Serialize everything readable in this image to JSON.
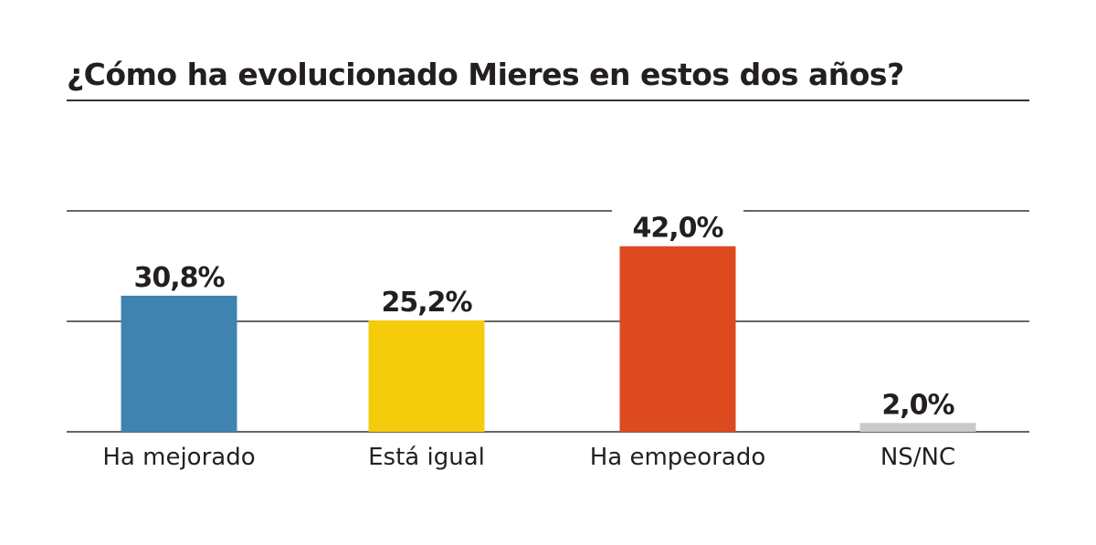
{
  "chart_data": {
    "type": "bar",
    "title": "¿Cómo ha evolucionado Mieres en estos dos años?",
    "categories": [
      "Ha mejorado",
      "Está igual",
      "Ha empeorado",
      "NS/NC"
    ],
    "values": [
      30.8,
      25.2,
      42.0,
      2.0
    ],
    "data_labels": [
      "30,8%",
      "25,2%",
      "42,0%",
      "2,0%"
    ],
    "colors": [
      "#3f84b0",
      "#f4cc0b",
      "#de4a1f",
      "#c9c9c9"
    ],
    "xlabel": "",
    "ylabel": "",
    "ylim": [
      0,
      50
    ],
    "gridlines": [
      0,
      25,
      50
    ],
    "grid": true,
    "legend": "none"
  }
}
